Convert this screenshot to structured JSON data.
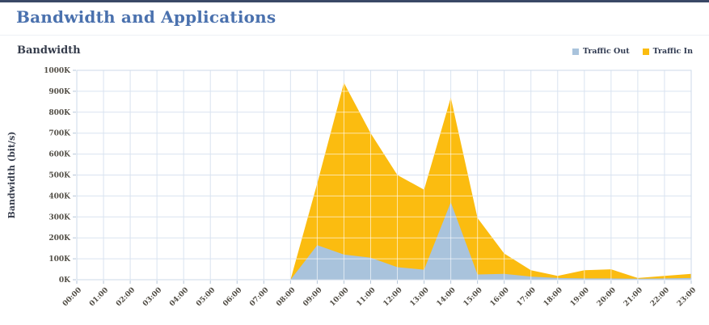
{
  "page": {
    "title": "Bandwidth and Applications"
  },
  "chart_data": {
    "type": "area",
    "title": "Bandwidth",
    "xlabel": "",
    "ylabel": "Bandwidth (bit/s)",
    "unit": "bit/s",
    "ylim": [
      0,
      1000000
    ],
    "y_max_k": 1000,
    "y_tick_step_k": 100,
    "y_tick_labels": [
      "0K",
      "100K",
      "200K",
      "300K",
      "400K",
      "500K",
      "600K",
      "700K",
      "800K",
      "900K",
      "1000K"
    ],
    "grid": true,
    "legend_position": "top-right",
    "categories": [
      "00:00",
      "01:00",
      "02:00",
      "03:00",
      "04:00",
      "05:00",
      "06:00",
      "07:00",
      "08:00",
      "09:00",
      "10:00",
      "11:00",
      "12:00",
      "13:00",
      "14:00",
      "15:00",
      "16:00",
      "17:00",
      "18:00",
      "19:00",
      "20:00",
      "21:00",
      "22:00",
      "23:00"
    ],
    "series": [
      {
        "name": "Traffic Out",
        "color": "#a9c3dc",
        "values_k": [
          0,
          0,
          0,
          0,
          0,
          0,
          0,
          0,
          0,
          165,
          120,
          105,
          60,
          48,
          370,
          25,
          28,
          15,
          8,
          6,
          6,
          5,
          6,
          8
        ]
      },
      {
        "name": "Traffic In",
        "color": "#fbbc10",
        "values_k": [
          0,
          0,
          0,
          0,
          0,
          0,
          0,
          0,
          0,
          460,
          940,
          700,
          500,
          430,
          870,
          295,
          125,
          45,
          18,
          45,
          50,
          8,
          18,
          28
        ]
      }
    ],
    "colors": {
      "grid_line": "#d9e3f0",
      "grid_line_on_area": "rgba(255,255,255,0.62)",
      "plot_border": "#ccdae9",
      "tick": "#b6c6d8",
      "tick_label": "#524e46",
      "accent_bar": "#3a4866",
      "title_text": "#4a71ae"
    }
  }
}
